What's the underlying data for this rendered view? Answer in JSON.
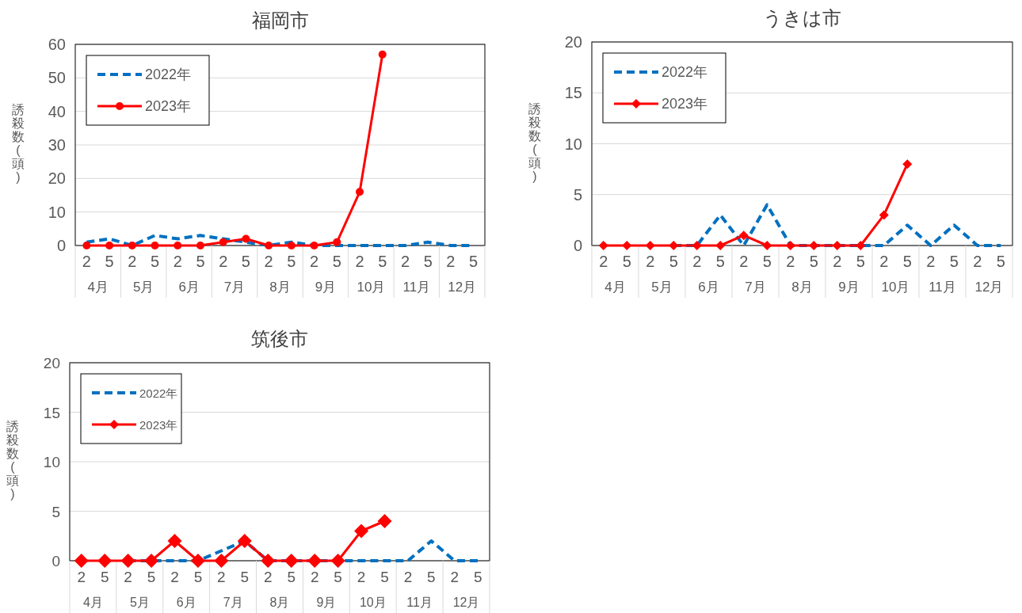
{
  "chart_data": [
    {
      "type": "line",
      "title": "福岡市",
      "ylabel": "誘殺数(頭)",
      "categories": [
        "2",
        "5",
        "2",
        "5",
        "2",
        "5",
        "2",
        "5",
        "2",
        "5",
        "2",
        "5",
        "2",
        "5",
        "2",
        "5",
        "2",
        "5"
      ],
      "annotations": [
        "4月",
        "5月",
        "6月",
        "7月",
        "8月",
        "9月",
        "10月",
        "11月",
        "12月"
      ],
      "ylim": [
        0,
        60
      ],
      "yticks": [
        0,
        10,
        20,
        30,
        40,
        50,
        60
      ],
      "grid": "y",
      "legend": "top left",
      "series": [
        {
          "name": "2022年",
          "color": "#0070c0",
          "line_style": "dashed",
          "marker": "none",
          "values": [
            1,
            2,
            0,
            3,
            2,
            3,
            2,
            1,
            0,
            1,
            0,
            0,
            0,
            0,
            0,
            1,
            0,
            0
          ]
        },
        {
          "name": "2023年",
          "color": "#ff0000",
          "line_style": "solid",
          "marker": "circle",
          "values": [
            0,
            0,
            0,
            0,
            0,
            0,
            1,
            2,
            0,
            0,
            0,
            1,
            16,
            57,
            null,
            null,
            null,
            null
          ]
        }
      ]
    },
    {
      "type": "line",
      "title": "うきは市",
      "ylabel": "誘殺数(頭)",
      "categories": [
        "2",
        "5",
        "2",
        "5",
        "2",
        "5",
        "2",
        "5",
        "2",
        "5",
        "2",
        "5",
        "2",
        "5",
        "2",
        "5",
        "2",
        "5"
      ],
      "annotations": [
        "4月",
        "5月",
        "6月",
        "7月",
        "8月",
        "9月",
        "10月",
        "11月",
        "12月"
      ],
      "ylim": [
        0,
        20
      ],
      "yticks": [
        0,
        5,
        10,
        15,
        20
      ],
      "grid": "y",
      "legend": "top left",
      "series": [
        {
          "name": "2022年",
          "color": "#0070c0",
          "line_style": "dashed",
          "marker": "none",
          "values": [
            null,
            null,
            null,
            0,
            0,
            3,
            0,
            4,
            0,
            0,
            0,
            0,
            0,
            2,
            0,
            2,
            0,
            0
          ]
        },
        {
          "name": "2023年",
          "color": "#ff0000",
          "line_style": "solid",
          "marker": "diamond",
          "values": [
            0,
            0,
            0,
            0,
            0,
            0,
            1,
            0,
            0,
            0,
            0,
            0,
            3,
            8,
            null,
            null,
            null,
            null
          ]
        }
      ]
    },
    {
      "type": "line",
      "title": "筑後市",
      "ylabel": "誘殺数(頭)",
      "categories": [
        "2",
        "5",
        "2",
        "5",
        "2",
        "5",
        "2",
        "5",
        "2",
        "5",
        "2",
        "5",
        "2",
        "5",
        "2",
        "5",
        "2",
        "5"
      ],
      "annotations": [
        "4月",
        "5月",
        "6月",
        "7月",
        "8月",
        "9月",
        "10月",
        "11月",
        "12月"
      ],
      "ylim": [
        0,
        20
      ],
      "yticks": [
        0,
        5,
        10,
        15,
        20
      ],
      "grid": "y",
      "legend": "top left",
      "series": [
        {
          "name": "2022年",
          "color": "#0070c0",
          "line_style": "dashed",
          "marker": "none",
          "values": [
            null,
            null,
            0,
            0,
            0,
            0,
            1,
            2,
            0,
            0,
            0,
            0,
            0,
            0,
            0,
            2,
            0,
            0
          ]
        },
        {
          "name": "2023年",
          "color": "#ff0000",
          "line_style": "solid",
          "marker": "diamond",
          "values": [
            0,
            0,
            0,
            0,
            2,
            0,
            0,
            2,
            0,
            0,
            0,
            0,
            3,
            4,
            null,
            null,
            null,
            null
          ]
        }
      ]
    }
  ]
}
